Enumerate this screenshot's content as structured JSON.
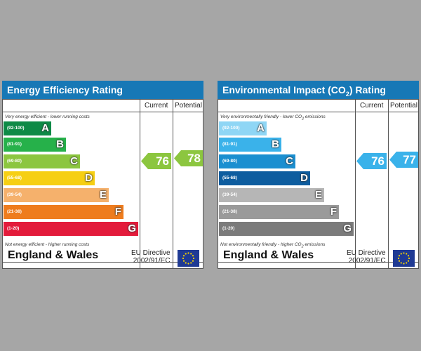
{
  "colors": {
    "header": "#1778b6",
    "flag": "#1f3a94",
    "flag_stars": "#f6d200",
    "energy_bands": [
      "#0e8a46",
      "#26b14a",
      "#8cc63f",
      "#f6cf13",
      "#f5b16c",
      "#ee7c1e",
      "#e31b3b"
    ],
    "env_bands": [
      "#8fd6f5",
      "#3ab2ea",
      "#1b8fd0",
      "#0e5d9f",
      "#b6b6b6",
      "#9a9a9a",
      "#7b7b7b"
    ],
    "current_arrow_energy": "#8cc63f",
    "potential_arrow_energy": "#8cc63f",
    "current_arrow_env": "#3ab2ea",
    "potential_arrow_env": "#3ab2ea"
  },
  "chart_data": [
    {
      "type": "table",
      "title": "Energy Efficiency Rating",
      "columns": [
        "Current",
        "Potential"
      ],
      "top_note": "Very energy efficient - lower running costs",
      "bottom_note": "Not energy efficient - higher running costs",
      "bands": [
        {
          "range": "(92-100)",
          "letter": "A"
        },
        {
          "range": "(81-91)",
          "letter": "B"
        },
        {
          "range": "(69-80)",
          "letter": "C"
        },
        {
          "range": "(55-68)",
          "letter": "D"
        },
        {
          "range": "(39-54)",
          "letter": "E"
        },
        {
          "range": "(21-38)",
          "letter": "F"
        },
        {
          "range": "(1-20)",
          "letter": "G"
        }
      ],
      "current": 76,
      "potential": 78,
      "current_band": "C",
      "potential_band": "C",
      "region": "England & Wales",
      "directive_line1": "EU Directive",
      "directive_line2": "2002/91/EC"
    },
    {
      "type": "table",
      "title_prefix": "Environmental Impact (CO",
      "title_sub": "2",
      "title_suffix": ") Rating",
      "columns": [
        "Current",
        "Potential"
      ],
      "top_note_prefix": "Very environmentally friendly - lower CO",
      "top_note_sub": "2",
      "top_note_suffix": " emissions",
      "bottom_note_prefix": "Not environmentally friendly - higher CO",
      "bottom_note_sub": "2",
      "bottom_note_suffix": " emissions",
      "bands": [
        {
          "range": "(92-100)",
          "letter": "A"
        },
        {
          "range": "(81-91)",
          "letter": "B"
        },
        {
          "range": "(69-80)",
          "letter": "C"
        },
        {
          "range": "(55-68)",
          "letter": "D"
        },
        {
          "range": "(39-54)",
          "letter": "E"
        },
        {
          "range": "(21-38)",
          "letter": "F"
        },
        {
          "range": "(1-20)",
          "letter": "G"
        }
      ],
      "current": 76,
      "potential": 77,
      "current_band": "C",
      "potential_band": "C",
      "region": "England & Wales",
      "directive_line1": "EU Directive",
      "directive_line2": "2002/91/EC"
    }
  ]
}
